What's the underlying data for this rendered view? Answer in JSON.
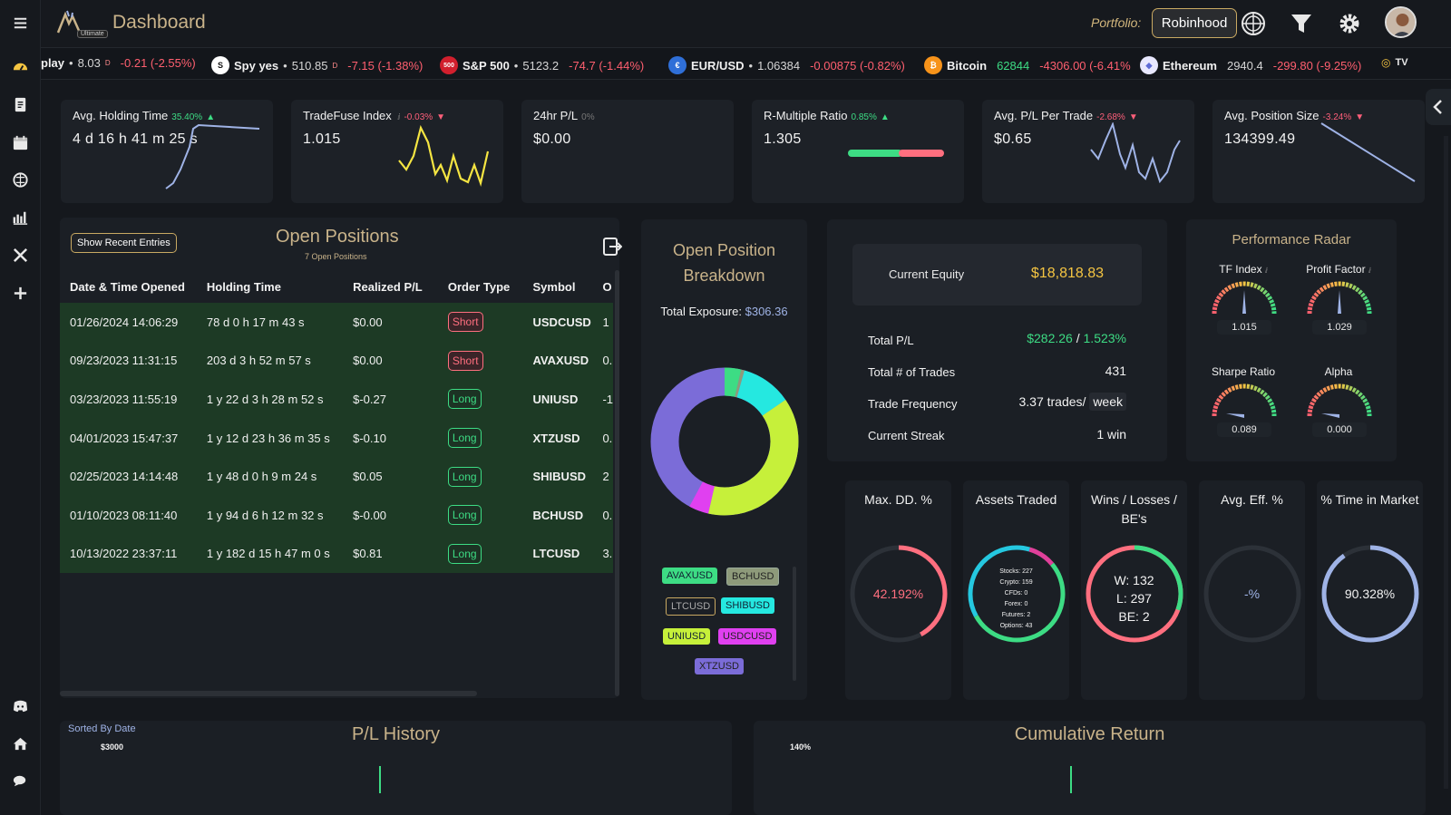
{
  "header": {
    "title": "Dashboard",
    "badge": "Ultimate",
    "portfolio_label": "Portfolio:",
    "portfolio_value": "Robinhood"
  },
  "ticker": [
    {
      "name": "play",
      "price": "8.03",
      "sup": "D",
      "change": "-0.21 (-2.55%)",
      "up": false
    },
    {
      "name": "Spy yes",
      "price": "510.85",
      "sup": "D",
      "change": "-7.15 (-1.38%)",
      "up": false
    },
    {
      "name": "S&P 500",
      "price": "5123.2",
      "change": "-74.7 (-1.44%)",
      "up": false
    },
    {
      "name": "EUR/USD",
      "price": "1.06384",
      "change": "-0.00875 (-0.82%)",
      "up": false
    },
    {
      "name": "Bitcoin",
      "price": "62844",
      "change": "-4306.00 (-6.41%",
      "up": false,
      "price_green": true
    },
    {
      "name": "Ethereum",
      "price": "2940.4",
      "change": "-299.80 (-9.25%)",
      "up": false
    }
  ],
  "kpis": [
    {
      "title": "Avg. Holding Time",
      "pct": "35.40%",
      "dir": "up",
      "value": "4 d  16 h  41 m  25 s"
    },
    {
      "title": "TradeFuse Index",
      "pct": "-0.03%",
      "dir": "down",
      "value": "1.015"
    },
    {
      "title": "24hr P/L",
      "pct": "0%",
      "dir": "none",
      "value": "$0.00"
    },
    {
      "title": "R-Multiple Ratio",
      "pct": "0.85%",
      "dir": "up",
      "value": "1.305"
    },
    {
      "title": "Avg. P/L Per Trade",
      "pct": "-2.68%",
      "dir": "down",
      "value": "$0.65"
    },
    {
      "title": "Avg. Position Size",
      "pct": "-3.24%",
      "dir": "down",
      "value": "134399.49"
    }
  ],
  "open_positions": {
    "title": "Open Positions",
    "subtitle": "7 Open Positions",
    "recent_button": "Show Recent Entries",
    "columns": [
      "Date & Time Opened",
      "Holding Time",
      "Realized P/L",
      "Order Type",
      "Symbol",
      "O"
    ],
    "rows": [
      {
        "date": "01/26/2024 14:06:29",
        "holding": "78 d  0 h  17 m  43 s",
        "pl": "$0.00",
        "pl_type": "zero",
        "order": "Short",
        "symbol": "USDCUSD",
        "o": "1"
      },
      {
        "date": "09/23/2023 11:31:15",
        "holding": "203 d  3 h  52 m  57 s",
        "pl": "$0.00",
        "pl_type": "zero",
        "order": "Short",
        "symbol": "AVAXUSD",
        "o": "0."
      },
      {
        "date": "03/23/2023 11:55:19",
        "holding": "1 y  22 d  3 h  28 m  52 s",
        "pl": "$-0.27",
        "pl_type": "neg",
        "order": "Long",
        "symbol": "UNIUSD",
        "o": "-1"
      },
      {
        "date": "04/01/2023 15:47:37",
        "holding": "1 y  12 d  23 h  36 m  35 s",
        "pl": "$-0.10",
        "pl_type": "neg",
        "order": "Long",
        "symbol": "XTZUSD",
        "o": "0."
      },
      {
        "date": "02/25/2023 14:14:48",
        "holding": "1 y  48 d  0 h  9 m  24 s",
        "pl": "$0.05",
        "pl_type": "pos",
        "order": "Long",
        "symbol": "SHIBUSD",
        "o": "2"
      },
      {
        "date": "01/10/2023 08:11:40",
        "holding": "1 y  94 d  6 h  12 m  32 s",
        "pl": "$-0.00",
        "pl_type": "neg",
        "order": "Long",
        "symbol": "BCHUSD",
        "o": "0."
      },
      {
        "date": "10/13/2022 23:37:11",
        "holding": "1 y  182 d  15 h  47 m  0 s",
        "pl": "$0.81",
        "pl_type": "pos",
        "order": "Long",
        "symbol": "LTCUSD",
        "o": "3."
      }
    ]
  },
  "breakdown": {
    "title_line1": "Open Position",
    "title_line2": "Breakdown",
    "exposure_label": "Total Exposure:",
    "exposure_value": "$306.36",
    "legend": [
      "AVAXUSD",
      "BCHUSD",
      "LTCUSD",
      "SHIBUSD",
      "UNIUSD",
      "USDCUSD",
      "XTZUSD"
    ]
  },
  "equity": {
    "current_label": "Current Equity",
    "current_value": "$18,818.83",
    "total_pl_label": "Total P/L",
    "total_pl_value": "$282.26",
    "total_pl_pct": "1.523%",
    "trades_label": "Total # of Trades",
    "trades_value": "431",
    "freq_label": "Trade Frequency",
    "freq_value": "3.37 trades/",
    "freq_unit": "week",
    "streak_label": "Current Streak",
    "streak_value": "1 win"
  },
  "radar": {
    "title": "Performance Radar",
    "gauges": [
      {
        "label": "TF Index",
        "value": "1.015",
        "info": true
      },
      {
        "label": "Profit Factor",
        "value": "1.029",
        "info": true
      },
      {
        "label": "Sharpe Ratio",
        "value": "0.089"
      },
      {
        "label": "Alpha",
        "value": "0.000"
      }
    ]
  },
  "rings": {
    "maxdd": {
      "title": "Max. DD. %",
      "value": "42.192%",
      "fraction": 0.42
    },
    "assets": {
      "title": "Assets Traded",
      "lines": [
        "Stocks: 227",
        "Crypto: 159",
        "CFDs: 0",
        "Forex: 0",
        "Futures: 2",
        "Options: 43"
      ]
    },
    "wl": {
      "title_line1": "Wins / Losses /",
      "title_line2": "BE's",
      "w": "W: 132",
      "l": "L: 297",
      "be": "BE: 2"
    },
    "eff": {
      "title": "Avg. Eff. %",
      "value": "-%"
    },
    "time": {
      "title": "% Time in Market",
      "value": "90.328%",
      "fraction": 0.903
    }
  },
  "bottom": {
    "sorted_label": "Sorted By Date",
    "pl_title": "P/L History",
    "pl_tick": "$3000",
    "cum_title": "Cumulative Return",
    "cum_tick": "140%"
  },
  "colors": {
    "accent": "#c9b38a",
    "gold": "#f5c542",
    "green": "#3ddc84",
    "red": "#ff5f7a"
  }
}
